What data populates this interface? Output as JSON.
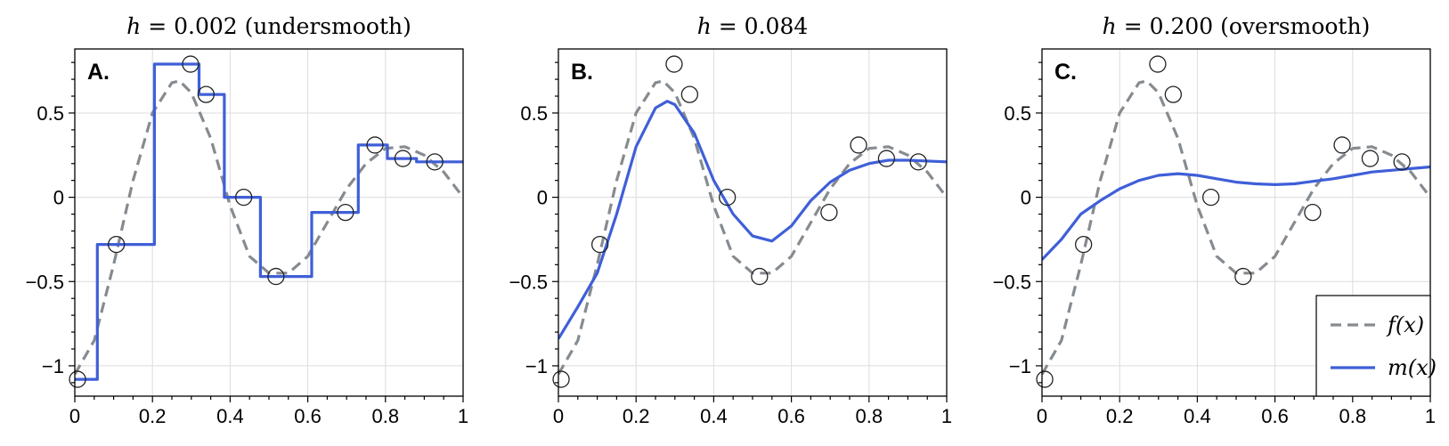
{
  "chart_data": [
    {
      "type": "line",
      "panel_label": "A.",
      "title": "h = 0.002 (undersmooth)",
      "xlim": [
        0,
        1
      ],
      "ylim": [
        -1.18,
        0.88
      ],
      "xticks": [
        0,
        0.2,
        0.4,
        0.6,
        0.8,
        1
      ],
      "xtick_labels": [
        "0",
        "0.2",
        "0.4",
        "0.6",
        "0.8",
        "1"
      ],
      "yticks": [
        -1,
        -0.5,
        0,
        0.5
      ],
      "ytick_labels": [
        "−1",
        "−0.5",
        "0",
        "0.5"
      ],
      "grid": true,
      "series": [
        {
          "style": "dashed",
          "color": "#868b90",
          "x": [
            0,
            0.05,
            0.1,
            0.15,
            0.2,
            0.25,
            0.27,
            0.3,
            0.35,
            0.4,
            0.45,
            0.5,
            0.55,
            0.6,
            0.65,
            0.7,
            0.75,
            0.8,
            0.85,
            0.9,
            0.95,
            1.0
          ],
          "y": [
            -1.05,
            -0.85,
            -0.4,
            0.1,
            0.5,
            0.68,
            0.69,
            0.62,
            0.35,
            -0.05,
            -0.35,
            -0.45,
            -0.45,
            -0.35,
            -0.15,
            0.05,
            0.2,
            0.29,
            0.3,
            0.25,
            0.15,
            0.0
          ]
        },
        {
          "style": "solid",
          "color": "#3f5fd8",
          "step": true,
          "x": [
            0,
            0.058,
            0.058,
            0.205,
            0.205,
            0.32,
            0.32,
            0.385,
            0.385,
            0.478,
            0.478,
            0.61,
            0.61,
            0.73,
            0.73,
            0.805,
            0.805,
            0.88,
            0.88,
            1.0
          ],
          "y": [
            -1.08,
            -1.08,
            -0.28,
            -0.28,
            0.79,
            0.79,
            0.61,
            0.61,
            0.0,
            0.0,
            -0.47,
            -0.47,
            -0.09,
            -0.09,
            0.31,
            0.31,
            0.23,
            0.23,
            0.21,
            0.21
          ]
        },
        {
          "style": "markers",
          "x": [
            0.007,
            0.107,
            0.298,
            0.338,
            0.435,
            0.518,
            0.697,
            0.773,
            0.845,
            0.927
          ],
          "y": [
            -1.08,
            -0.28,
            0.79,
            0.61,
            0.0,
            -0.47,
            -0.09,
            0.31,
            0.23,
            0.21
          ]
        }
      ]
    },
    {
      "type": "line",
      "panel_label": "B.",
      "title": "h = 0.084",
      "xlim": [
        0,
        1
      ],
      "ylim": [
        -1.18,
        0.88
      ],
      "xticks": [
        0,
        0.2,
        0.4,
        0.6,
        0.8,
        1
      ],
      "xtick_labels": [
        "0",
        "0.2",
        "0.4",
        "0.6",
        "0.8",
        "1"
      ],
      "yticks": [
        -1,
        -0.5,
        0,
        0.5
      ],
      "ytick_labels": [
        "−1",
        "−0.5",
        "0",
        "0.5"
      ],
      "grid": true,
      "series": [
        {
          "style": "dashed",
          "color": "#868b90",
          "x": [
            0,
            0.05,
            0.1,
            0.15,
            0.2,
            0.25,
            0.27,
            0.3,
            0.35,
            0.4,
            0.45,
            0.5,
            0.55,
            0.6,
            0.65,
            0.7,
            0.75,
            0.8,
            0.85,
            0.9,
            0.95,
            1.0
          ],
          "y": [
            -1.05,
            -0.85,
            -0.4,
            0.1,
            0.5,
            0.68,
            0.69,
            0.62,
            0.35,
            -0.05,
            -0.35,
            -0.45,
            -0.45,
            -0.35,
            -0.15,
            0.05,
            0.2,
            0.29,
            0.3,
            0.25,
            0.15,
            0.0
          ]
        },
        {
          "style": "solid",
          "color": "#3f5fd8",
          "x": [
            0,
            0.05,
            0.1,
            0.15,
            0.2,
            0.25,
            0.28,
            0.3,
            0.35,
            0.4,
            0.45,
            0.5,
            0.55,
            0.6,
            0.65,
            0.7,
            0.75,
            0.8,
            0.85,
            0.9,
            1.0
          ],
          "y": [
            -0.84,
            -0.65,
            -0.45,
            -0.1,
            0.3,
            0.53,
            0.57,
            0.55,
            0.38,
            0.1,
            -0.1,
            -0.23,
            -0.26,
            -0.17,
            -0.02,
            0.09,
            0.16,
            0.2,
            0.22,
            0.22,
            0.21
          ]
        },
        {
          "style": "markers",
          "x": [
            0.007,
            0.107,
            0.298,
            0.338,
            0.435,
            0.518,
            0.697,
            0.773,
            0.845,
            0.927
          ],
          "y": [
            -1.08,
            -0.28,
            0.79,
            0.61,
            0.0,
            -0.47,
            -0.09,
            0.31,
            0.23,
            0.21
          ]
        }
      ]
    },
    {
      "type": "line",
      "panel_label": "C.",
      "title": "h = 0.200 (oversmooth)",
      "xlim": [
        0,
        1
      ],
      "ylim": [
        -1.18,
        0.88
      ],
      "xticks": [
        0,
        0.2,
        0.4,
        0.6,
        0.8,
        1
      ],
      "xtick_labels": [
        "0",
        "0.2",
        "0.4",
        "0.6",
        "0.8",
        "1"
      ],
      "yticks": [
        -1,
        -0.5,
        0,
        0.5
      ],
      "ytick_labels": [
        "−1",
        "−0.5",
        "0",
        "0.5"
      ],
      "grid": true,
      "legend": {
        "placement": "lower-right",
        "entries": [
          "f(x)",
          "m(x)"
        ]
      },
      "series": [
        {
          "name": "f(x)",
          "style": "dashed",
          "color": "#868b90",
          "x": [
            0,
            0.05,
            0.1,
            0.15,
            0.2,
            0.25,
            0.27,
            0.3,
            0.35,
            0.4,
            0.45,
            0.5,
            0.55,
            0.6,
            0.65,
            0.7,
            0.75,
            0.8,
            0.85,
            0.9,
            0.95,
            1.0
          ],
          "y": [
            -1.05,
            -0.85,
            -0.4,
            0.1,
            0.5,
            0.68,
            0.69,
            0.62,
            0.35,
            -0.05,
            -0.35,
            -0.45,
            -0.45,
            -0.35,
            -0.15,
            0.05,
            0.2,
            0.29,
            0.3,
            0.25,
            0.15,
            0.0
          ]
        },
        {
          "name": "m(x)",
          "style": "solid",
          "color": "#3f5fd8",
          "x": [
            0,
            0.05,
            0.1,
            0.15,
            0.2,
            0.25,
            0.3,
            0.35,
            0.4,
            0.45,
            0.5,
            0.55,
            0.6,
            0.65,
            0.7,
            0.75,
            0.8,
            0.85,
            0.9,
            0.95,
            1.0
          ],
          "y": [
            -0.37,
            -0.25,
            -0.1,
            -0.02,
            0.05,
            0.1,
            0.13,
            0.14,
            0.13,
            0.11,
            0.09,
            0.08,
            0.075,
            0.08,
            0.095,
            0.11,
            0.13,
            0.15,
            0.16,
            0.17,
            0.18
          ]
        },
        {
          "style": "markers",
          "x": [
            0.007,
            0.107,
            0.298,
            0.338,
            0.435,
            0.518,
            0.697,
            0.773,
            0.845,
            0.927
          ],
          "y": [
            -1.08,
            -0.28,
            0.79,
            0.61,
            0.0,
            -0.47,
            -0.09,
            0.31,
            0.23,
            0.21
          ]
        }
      ]
    }
  ]
}
